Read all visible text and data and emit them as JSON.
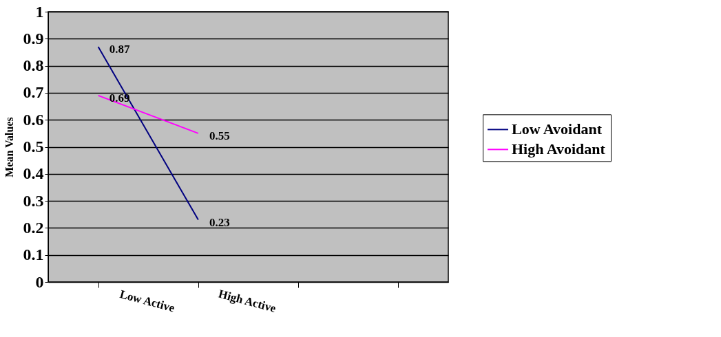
{
  "chart_data": {
    "type": "line",
    "ylabel": "Mean Values",
    "categories": [
      "Low Active",
      "High Active",
      null,
      null
    ],
    "series": [
      {
        "name": "Low Avoidant",
        "color": "#000080",
        "values": [
          0.87,
          0.23,
          null,
          null
        ]
      },
      {
        "name": "High Avoidant",
        "color": "#ff00ff",
        "values": [
          0.69,
          0.55,
          null,
          null
        ]
      }
    ],
    "ylim": [
      0,
      1
    ],
    "yticks": [
      0,
      0.1,
      0.2,
      0.3,
      0.4,
      0.5,
      0.6,
      0.7,
      0.8,
      0.9,
      1
    ],
    "grid": "y",
    "legend": "right",
    "data_labels": true,
    "marker": "none",
    "line_style": "solid"
  }
}
